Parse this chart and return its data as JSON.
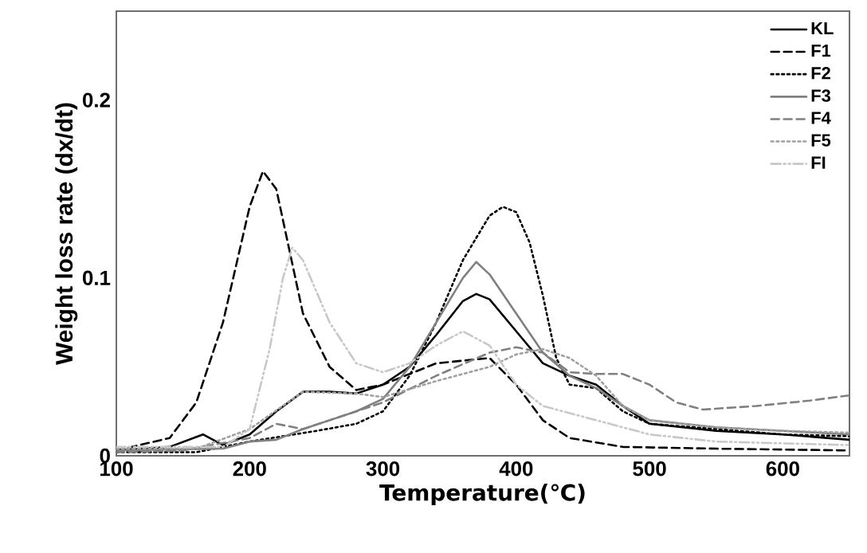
{
  "chart_data": {
    "type": "line",
    "xlabel": "Temperature(℃)",
    "ylabel": "Weight loss rate (dx/dt)",
    "xlim": [
      100,
      650
    ],
    "ylim": [
      0,
      0.25
    ],
    "xticks": [
      100,
      200,
      300,
      400,
      500,
      600
    ],
    "yticks": [
      0,
      0.1,
      0.2
    ],
    "grid": false,
    "legend": "top right",
    "marker": "none",
    "series": [
      {
        "name": "KL",
        "color": "#000000",
        "line_style": "solid",
        "x": [
          100,
          140,
          165,
          180,
          200,
          220,
          240,
          260,
          280,
          300,
          320,
          340,
          360,
          370,
          380,
          400,
          420,
          440,
          460,
          480,
          500,
          550,
          600,
          650
        ],
        "values": [
          0.003,
          0.005,
          0.012,
          0.006,
          0.012,
          0.025,
          0.036,
          0.036,
          0.035,
          0.04,
          0.05,
          0.068,
          0.087,
          0.091,
          0.088,
          0.07,
          0.052,
          0.045,
          0.04,
          0.028,
          0.018,
          0.014,
          0.012,
          0.009
        ]
      },
      {
        "name": "F1",
        "color": "#000000",
        "line_style": "dashed",
        "x": [
          100,
          140,
          160,
          180,
          200,
          210,
          220,
          240,
          260,
          280,
          300,
          340,
          380,
          400,
          420,
          440,
          480,
          550,
          650
        ],
        "values": [
          0.003,
          0.01,
          0.03,
          0.075,
          0.14,
          0.16,
          0.15,
          0.08,
          0.05,
          0.037,
          0.04,
          0.052,
          0.055,
          0.04,
          0.02,
          0.01,
          0.005,
          0.004,
          0.003
        ]
      },
      {
        "name": "F2",
        "color": "#000000",
        "line_style": "dotted",
        "x": [
          100,
          160,
          200,
          250,
          280,
          300,
          320,
          340,
          360,
          380,
          390,
          400,
          410,
          420,
          430,
          440,
          460,
          480,
          500,
          550,
          600,
          650
        ],
        "values": [
          0.002,
          0.002,
          0.008,
          0.014,
          0.018,
          0.025,
          0.045,
          0.075,
          0.11,
          0.135,
          0.14,
          0.137,
          0.12,
          0.09,
          0.055,
          0.04,
          0.038,
          0.025,
          0.018,
          0.015,
          0.012,
          0.011
        ]
      },
      {
        "name": "F3",
        "color": "#808080",
        "line_style": "solid",
        "x": [
          100,
          180,
          200,
          220,
          240,
          260,
          280,
          300,
          320,
          340,
          360,
          370,
          380,
          400,
          420,
          440,
          460,
          480,
          500,
          550,
          600,
          650
        ],
        "values": [
          0.003,
          0.004,
          0.008,
          0.009,
          0.015,
          0.02,
          0.025,
          0.032,
          0.05,
          0.075,
          0.1,
          0.109,
          0.102,
          0.08,
          0.058,
          0.045,
          0.038,
          0.028,
          0.02,
          0.016,
          0.014,
          0.012
        ]
      },
      {
        "name": "F4",
        "color": "#808080",
        "line_style": "dashed",
        "x": [
          100,
          150,
          200,
          220,
          240,
          260,
          300,
          340,
          380,
          400,
          420,
          440,
          460,
          480,
          500,
          520,
          540,
          580,
          620,
          650
        ],
        "values": [
          0.002,
          0.003,
          0.01,
          0.018,
          0.015,
          0.02,
          0.03,
          0.045,
          0.058,
          0.061,
          0.058,
          0.047,
          0.046,
          0.046,
          0.04,
          0.03,
          0.026,
          0.028,
          0.031,
          0.034
        ]
      },
      {
        "name": "F5",
        "color": "#a0a0a0",
        "line_style": "dotted",
        "x": [
          100,
          160,
          200,
          240,
          280,
          300,
          340,
          380,
          400,
          420,
          440,
          460,
          480,
          500,
          550,
          600,
          650
        ],
        "values": [
          0.004,
          0.004,
          0.015,
          0.036,
          0.035,
          0.033,
          0.042,
          0.05,
          0.057,
          0.06,
          0.055,
          0.045,
          0.028,
          0.02,
          0.016,
          0.014,
          0.013
        ]
      },
      {
        "name": "FI",
        "color": "#c8c8c8",
        "line_style": "dashdotdotted",
        "x": [
          100,
          180,
          200,
          215,
          225,
          232,
          240,
          260,
          280,
          300,
          320,
          340,
          360,
          380,
          400,
          420,
          460,
          500,
          550,
          650
        ],
        "values": [
          0.005,
          0.005,
          0.015,
          0.06,
          0.1,
          0.117,
          0.11,
          0.075,
          0.052,
          0.047,
          0.052,
          0.062,
          0.07,
          0.062,
          0.04,
          0.028,
          0.02,
          0.012,
          0.008,
          0.006
        ]
      }
    ]
  }
}
